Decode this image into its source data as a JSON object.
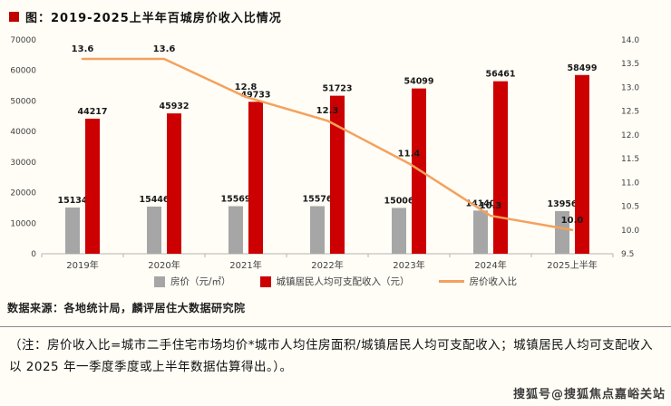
{
  "header": {
    "title": "图：2019-2025上半年百城房价收入比情况",
    "bullet_color": "#c00000"
  },
  "chart_data": {
    "type": "combo",
    "title": "2019-2025上半年百城房价收入比情况",
    "categories": [
      "2019年",
      "2020年",
      "2021年",
      "2022年",
      "2023年",
      "2024年",
      "2025上半年"
    ],
    "series": [
      {
        "name": "房价（元/㎡）",
        "type": "bar",
        "axis": "left",
        "color": "#a6a6a6",
        "values": [
          15134,
          15446,
          15569,
          15576,
          15006,
          14140,
          13956
        ]
      },
      {
        "name": "城镇居民人均可支配收入（元）",
        "type": "bar",
        "axis": "left",
        "color": "#cc0000",
        "values": [
          44217,
          45932,
          49733,
          51723,
          54099,
          56461,
          58499
        ]
      },
      {
        "name": "房价收入比",
        "type": "line",
        "axis": "right",
        "color": "#f4a15d",
        "values": [
          13.6,
          13.6,
          12.8,
          12.3,
          11.4,
          10.3,
          10.0
        ]
      }
    ],
    "left_axis": {
      "min": 0,
      "max": 70000,
      "step": 10000,
      "ticks": [
        "0",
        "10000",
        "20000",
        "30000",
        "40000",
        "50000",
        "60000",
        "70000"
      ]
    },
    "right_axis": {
      "min": 9.5,
      "max": 14.0,
      "step": 0.5,
      "ticks": [
        "9.5",
        "10.0",
        "10.5",
        "11.0",
        "11.5",
        "12.0",
        "12.5",
        "13.0",
        "13.5",
        "14.0"
      ]
    },
    "legend_position": "bottom",
    "grid": false
  },
  "footer": {
    "source": "数据来源：各地统计局，麟评居住大数据研究院",
    "note": "（注：房价收入比=城市二手住宅市场均价*城市人均住房面积/城镇居民人均可支配收入；城镇居民人均可支配收入以 2025 年一季度季度或上半年数据估算得出。）。",
    "watermark": "搜狐号@搜狐焦点嘉峪关站"
  }
}
